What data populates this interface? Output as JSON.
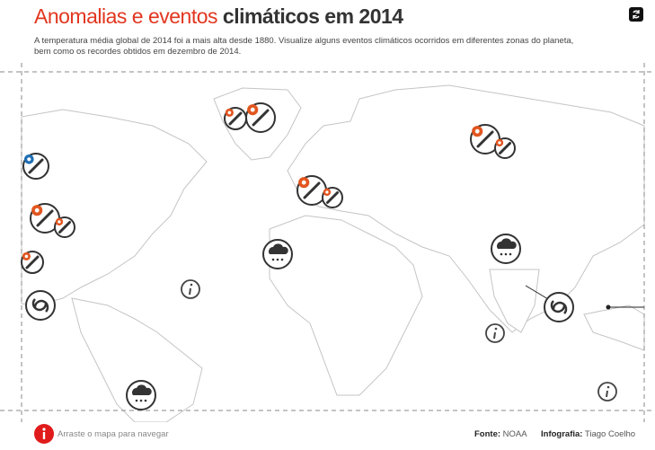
{
  "header": {
    "title_part1": "Anomalias e eventos",
    "title_part2": "climáticos em 2014",
    "subtitle_lines": [
      "A temperatura média global de 2014 foi a mais alta desde 1880. Visualize alguns eventos climáticos ocorridos em diferentes zonas do planeta,",
      "bem como os recordes obtidos em dezembro de 2014."
    ]
  },
  "footer": {
    "hint": "Arraste o mapa para navegar",
    "source_label": "Fonte:",
    "source": "NOAA",
    "credit_label": "Infografia:",
    "credit": "Tiago Coelho"
  }
}
